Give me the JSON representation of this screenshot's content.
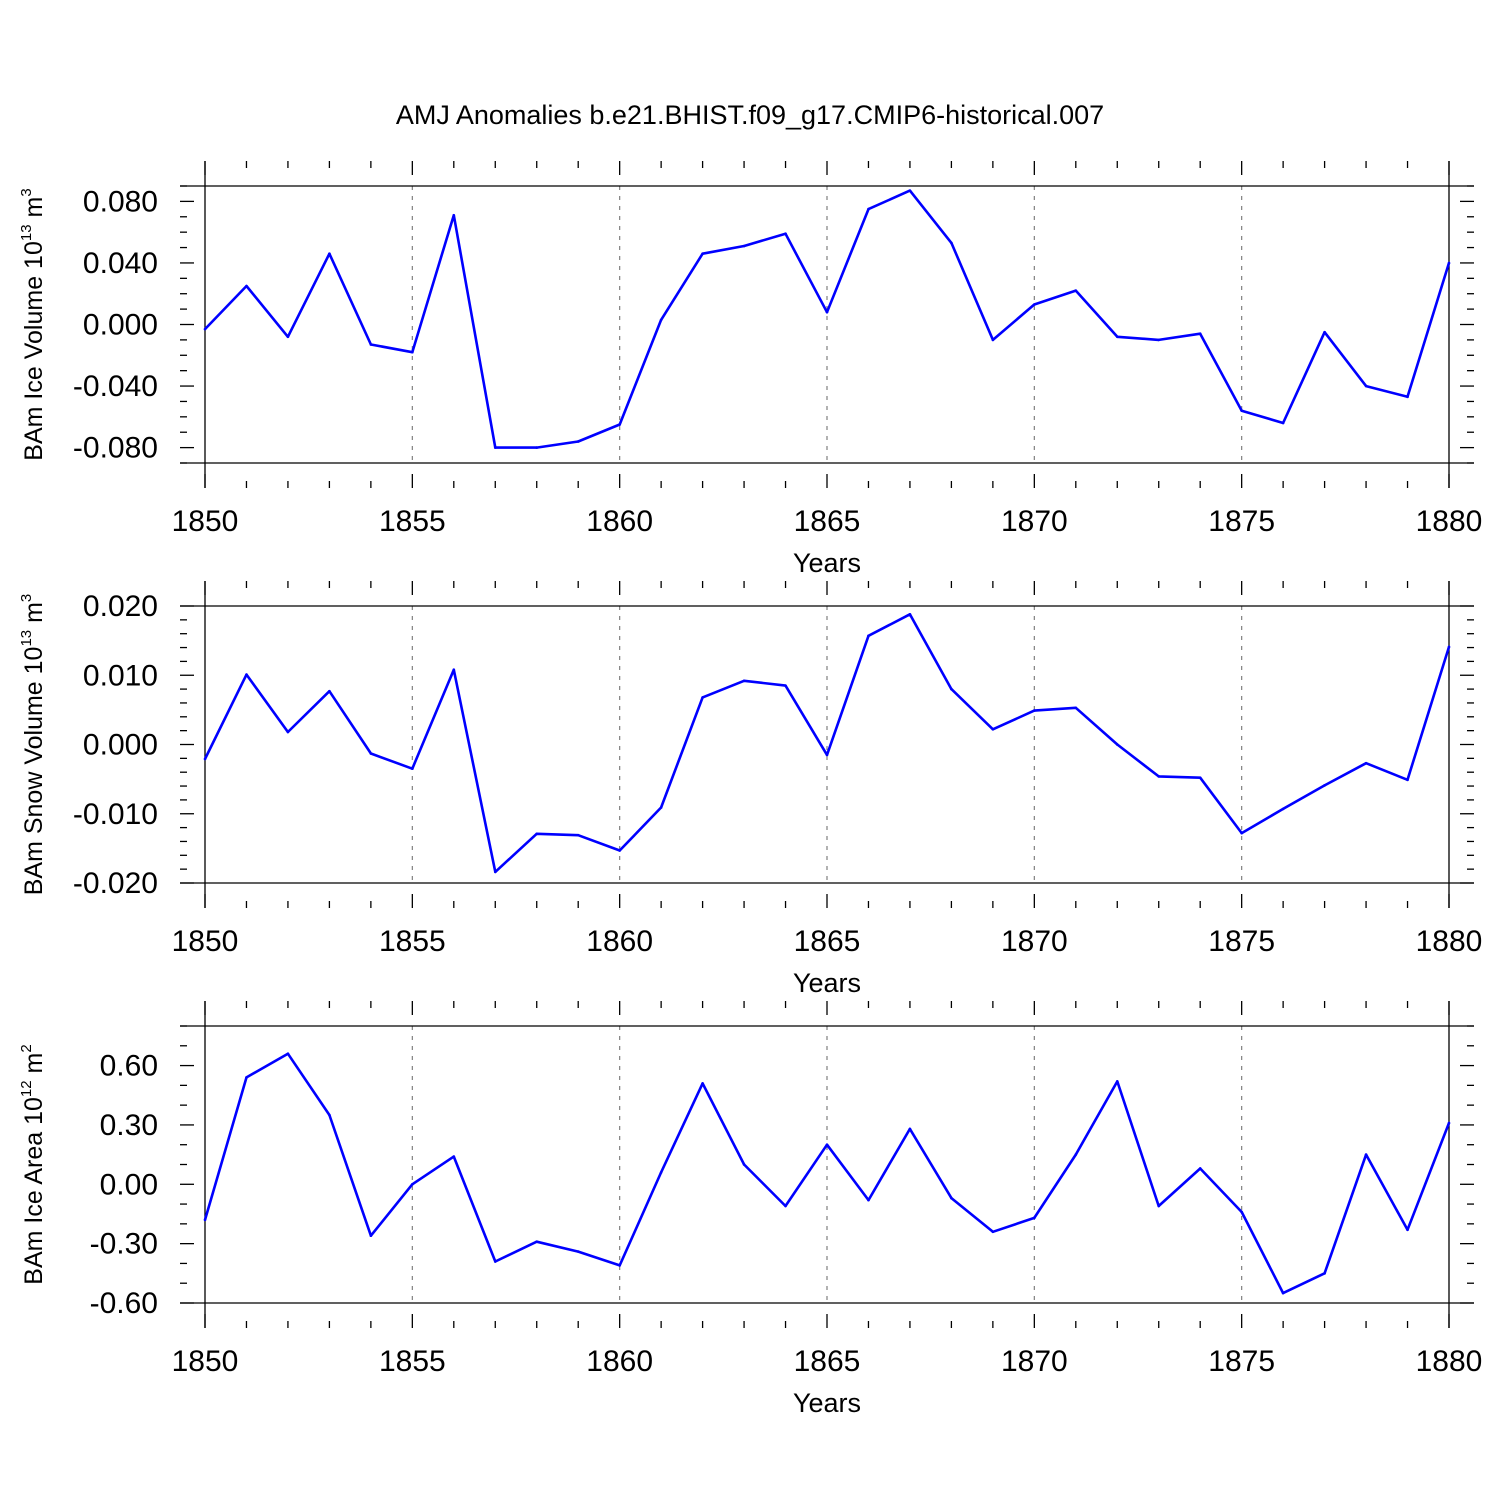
{
  "title": "AMJ Anomalies b.e21.BHIST.f09_g17.CMIP6-historical.007",
  "line_color": "#0000ff",
  "grid_color": "#808080",
  "chart_data": [
    {
      "id": "ice-volume",
      "type": "line",
      "ylabel": {
        "text": "BAm Ice Volume 10",
        "exp": "13",
        "unit": " m",
        "unit_exp": "3"
      },
      "xlabel": "Years",
      "xlim": [
        1850,
        1880
      ],
      "ylim": [
        -0.09,
        0.09
      ],
      "xticks": [
        1850,
        1855,
        1860,
        1865,
        1870,
        1875,
        1880
      ],
      "xtick_labels": [
        "1850",
        "1855",
        "1860",
        "1865",
        "1870",
        "1875",
        "1880"
      ],
      "yticks": [
        -0.08,
        -0.04,
        0.0,
        0.04,
        0.08
      ],
      "ytick_labels": [
        "-0.080",
        "-0.040",
        "0.000",
        "0.040",
        "0.080"
      ],
      "y_minor_step": 0.01,
      "x": [
        1850,
        1851,
        1852,
        1853,
        1854,
        1855,
        1856,
        1857,
        1858,
        1859,
        1860,
        1861,
        1862,
        1863,
        1864,
        1865,
        1866,
        1867,
        1868,
        1869,
        1870,
        1871,
        1872,
        1873,
        1874,
        1875,
        1876,
        1877,
        1878,
        1879,
        1880
      ],
      "y": [
        -0.003,
        0.025,
        -0.008,
        0.046,
        -0.013,
        -0.018,
        0.071,
        -0.08,
        -0.08,
        -0.076,
        -0.065,
        0.003,
        0.046,
        0.051,
        0.059,
        0.008,
        0.075,
        0.087,
        0.053,
        -0.01,
        0.013,
        0.022,
        -0.008,
        -0.01,
        -0.006,
        -0.056,
        -0.064,
        -0.005,
        -0.04,
        -0.047,
        0.04
      ]
    },
    {
      "id": "snow-volume",
      "type": "line",
      "ylabel": {
        "text": "BAm Snow Volume 10",
        "exp": "13",
        "unit": " m",
        "unit_exp": "3"
      },
      "xlabel": "Years",
      "xlim": [
        1850,
        1880
      ],
      "ylim": [
        -0.02,
        0.02
      ],
      "xticks": [
        1850,
        1855,
        1860,
        1865,
        1870,
        1875,
        1880
      ],
      "xtick_labels": [
        "1850",
        "1855",
        "1860",
        "1865",
        "1870",
        "1875",
        "1880"
      ],
      "yticks": [
        -0.02,
        -0.01,
        0.0,
        0.01,
        0.02
      ],
      "ytick_labels": [
        "-0.020",
        "-0.010",
        "0.000",
        "0.010",
        "0.020"
      ],
      "y_minor_step": 0.002,
      "x": [
        1850,
        1851,
        1852,
        1853,
        1854,
        1855,
        1856,
        1857,
        1858,
        1859,
        1860,
        1861,
        1862,
        1863,
        1864,
        1865,
        1866,
        1867,
        1868,
        1869,
        1870,
        1871,
        1872,
        1873,
        1874,
        1875,
        1876,
        1877,
        1878,
        1879,
        1880
      ],
      "y": [
        -0.0021,
        0.0101,
        0.0018,
        0.0077,
        -0.0013,
        -0.0035,
        0.0108,
        -0.0184,
        -0.0129,
        -0.0131,
        -0.0153,
        -0.0091,
        0.0068,
        0.0092,
        0.0085,
        -0.0015,
        0.0157,
        0.0188,
        0.008,
        0.0022,
        0.0049,
        0.0053,
        0.0,
        -0.0046,
        -0.0048,
        -0.0128,
        -0.0093,
        -0.0059,
        -0.0027,
        -0.0051,
        0.0141
      ]
    },
    {
      "id": "ice-area",
      "type": "line",
      "ylabel": {
        "text": "BAm Ice Area 10",
        "exp": "12",
        "unit": " m",
        "unit_exp": "2"
      },
      "xlabel": "Years",
      "xlim": [
        1850,
        1880
      ],
      "ylim": [
        -0.6,
        0.8
      ],
      "xticks": [
        1850,
        1855,
        1860,
        1865,
        1870,
        1875,
        1880
      ],
      "xtick_labels": [
        "1850",
        "1855",
        "1860",
        "1865",
        "1870",
        "1875",
        "1880"
      ],
      "yticks": [
        -0.6,
        -0.3,
        0.0,
        0.3,
        0.6
      ],
      "ytick_labels": [
        "-0.60",
        "-0.30",
        "0.00",
        "0.30",
        "0.60"
      ],
      "y_minor_step": 0.1,
      "x": [
        1850,
        1851,
        1852,
        1853,
        1854,
        1855,
        1856,
        1857,
        1858,
        1859,
        1860,
        1861,
        1862,
        1863,
        1864,
        1865,
        1866,
        1867,
        1868,
        1869,
        1870,
        1871,
        1872,
        1873,
        1874,
        1875,
        1876,
        1877,
        1878,
        1879,
        1880
      ],
      "y": [
        -0.18,
        0.54,
        0.66,
        0.35,
        -0.26,
        0.0,
        0.14,
        -0.39,
        -0.29,
        -0.34,
        -0.41,
        0.06,
        0.51,
        0.1,
        -0.11,
        0.2,
        -0.08,
        0.28,
        -0.07,
        -0.24,
        -0.17,
        0.15,
        0.52,
        -0.11,
        0.08,
        -0.14,
        -0.55,
        -0.45,
        0.15,
        -0.23,
        0.31
      ]
    }
  ]
}
